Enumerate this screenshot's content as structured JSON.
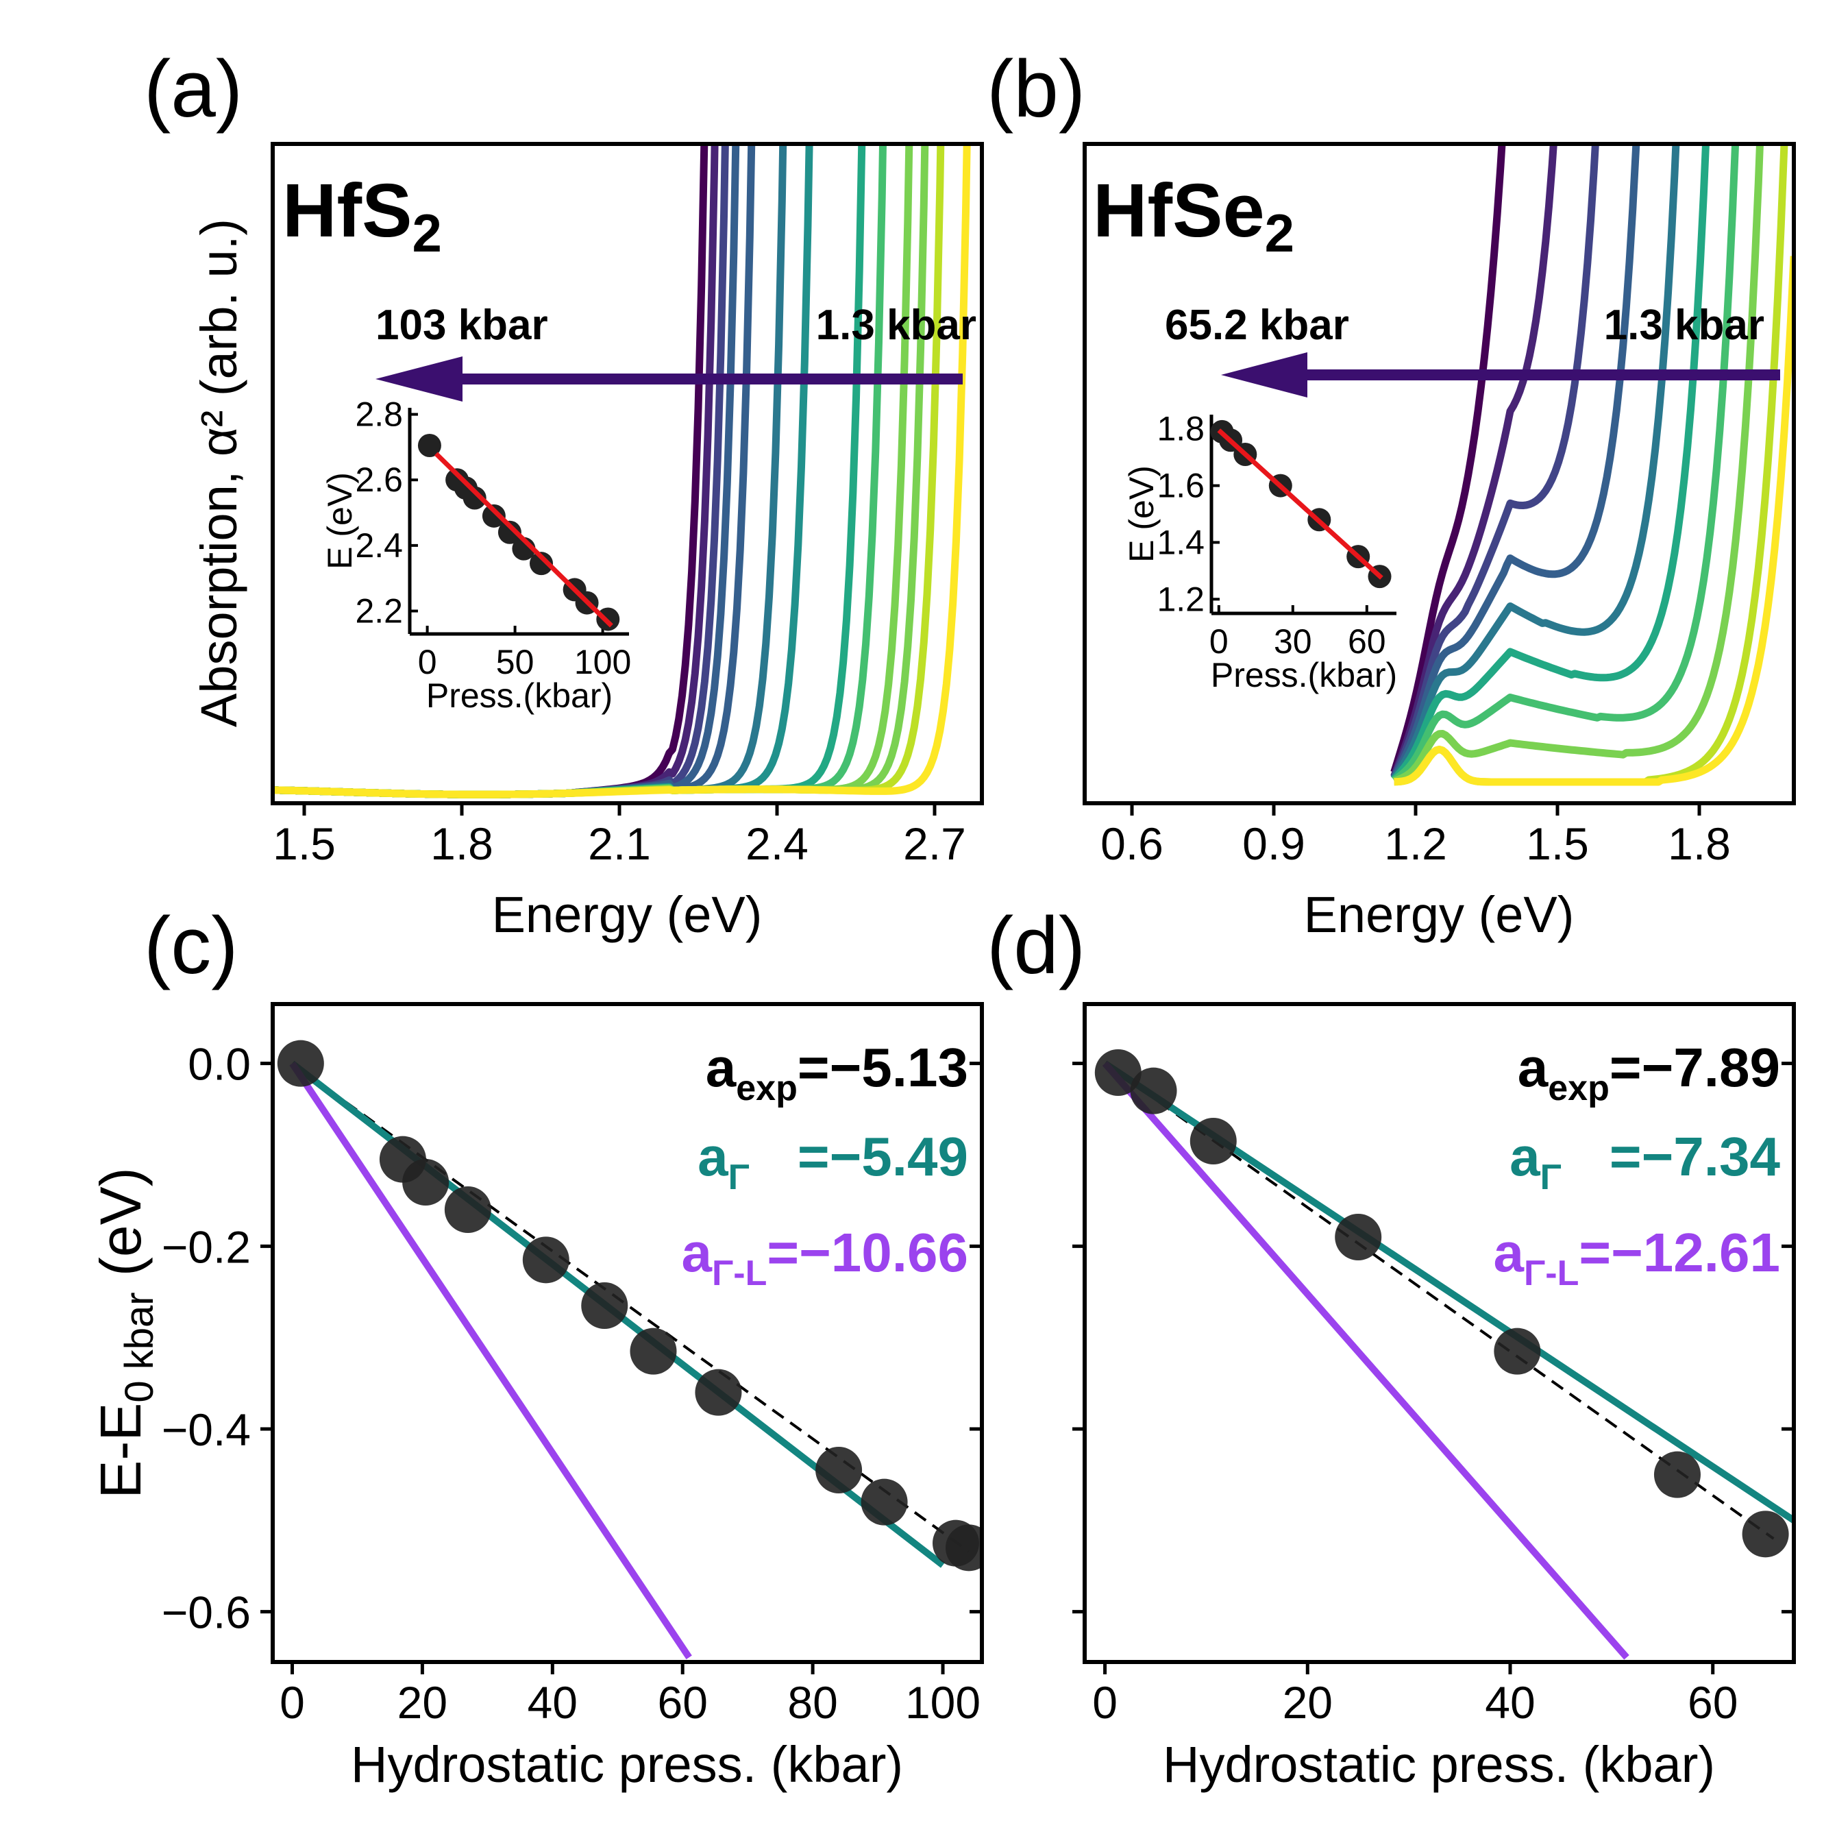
{
  "colors": {
    "arrow": "#3b0f6f",
    "fit_red": "#e8161b",
    "gamma": "#138580",
    "gamma_L": "#9b43ee",
    "points": "#222222",
    "viridis": [
      "#440154",
      "#482475",
      "#414487",
      "#355f8d",
      "#2a788e",
      "#21918c",
      "#22a884",
      "#44bf70",
      "#7ad151",
      "#bddf26",
      "#fde725"
    ]
  },
  "chart_data": [
    {
      "id": "a",
      "panel_label": "(a)",
      "type": "line",
      "material": "HfS",
      "material_sub": "2",
      "xlabel": "Energy (eV)",
      "ylabel": "Absorption, α² (arb. u.)",
      "xlim": [
        1.44,
        2.79
      ],
      "xticks": [
        1.5,
        1.8,
        2.1,
        2.4,
        2.7
      ],
      "xtick_labels": [
        "1.5",
        "1.8",
        "2.1",
        "2.4",
        "2.7"
      ],
      "yticks": [],
      "arrow": {
        "from_label": "1.3 kbar",
        "to_label": "103 kbar",
        "direction": "left"
      },
      "edges_eV": [
        2.2,
        2.22,
        2.24,
        2.26,
        2.29,
        2.35,
        2.4,
        2.5,
        2.54,
        2.59,
        2.62,
        2.65,
        2.7
      ],
      "inset": {
        "type": "scatter",
        "xlabel": "Press.(kbar)",
        "ylabel": "E (eV)",
        "xlim": [
          -10,
          115
        ],
        "ylim": [
          2.13,
          2.82
        ],
        "xticks": [
          0,
          50,
          100
        ],
        "xtick_labels": [
          "0",
          "50",
          "100"
        ],
        "yticks": [
          2.2,
          2.4,
          2.6,
          2.8
        ],
        "ytick_labels": [
          "2.2",
          "2.4",
          "2.6",
          "2.8"
        ],
        "x": [
          1.3,
          17,
          22,
          27,
          38,
          47,
          55,
          65,
          84,
          91,
          103
        ],
        "y": [
          2.705,
          2.6,
          2.575,
          2.545,
          2.49,
          2.44,
          2.39,
          2.345,
          2.265,
          2.225,
          2.175
        ],
        "fit": {
          "x": [
            5,
            105
          ],
          "y": [
            2.68,
            2.155
          ]
        }
      }
    },
    {
      "id": "b",
      "panel_label": "(b)",
      "type": "line",
      "material": "HfSe",
      "material_sub": "2",
      "xlabel": "Energy (eV)",
      "xlim": [
        0.5,
        2.0
      ],
      "xticks": [
        0.6,
        0.9,
        1.2,
        1.5,
        1.8
      ],
      "xtick_labels": [
        "0.6",
        "0.9",
        "1.2",
        "1.5",
        "1.8"
      ],
      "yticks": [],
      "arrow": {
        "from_label": "1.3 kbar",
        "to_label": "65.2 kbar",
        "direction": "left"
      },
      "edges_eV": [
        1.28,
        1.38,
        1.46,
        1.54,
        1.62,
        1.68,
        1.74,
        1.79,
        1.84,
        1.87
      ],
      "inset": {
        "type": "scatter",
        "xlabel": "Press.(kbar)",
        "ylabel": "E (eV)",
        "xlim": [
          -3,
          72
        ],
        "ylim": [
          1.15,
          1.85
        ],
        "xticks": [
          0,
          30,
          60
        ],
        "xtick_labels": [
          "0",
          "30",
          "60"
        ],
        "yticks": [
          1.2,
          1.4,
          1.6,
          1.8
        ],
        "ytick_labels": [
          "1.2",
          "1.4",
          "1.6",
          "1.8"
        ],
        "x": [
          1.3,
          4.8,
          10.7,
          25,
          40.7,
          56.5,
          65.2
        ],
        "y": [
          1.79,
          1.76,
          1.71,
          1.6,
          1.48,
          1.35,
          1.28
        ],
        "fit": {
          "x": [
            0,
            66
          ],
          "y": [
            1.795,
            1.275
          ]
        }
      }
    },
    {
      "id": "c",
      "panel_label": "(c)",
      "type": "scatter",
      "xlabel": "Hydrostatic press. (kbar)",
      "ylabel": "E-E",
      "ylabel_sub": "0 kbar",
      "ylabel_tail": " (eV)",
      "xlim": [
        -3,
        106
      ],
      "ylim": [
        -0.655,
        0.065
      ],
      "xticks": [
        0,
        20,
        40,
        60,
        80,
        100
      ],
      "xtick_labels": [
        "0",
        "20",
        "40",
        "60",
        "80",
        "100"
      ],
      "yticks": [
        0.0,
        -0.2,
        -0.4,
        -0.6
      ],
      "ytick_labels": [
        "0.0",
        "−0.2",
        "−0.4",
        "−0.6"
      ],
      "x": [
        1.3,
        17,
        20.5,
        27,
        39,
        48,
        55.5,
        65.5,
        84,
        91,
        102,
        104
      ],
      "y": [
        0.0,
        -0.105,
        -0.13,
        -0.16,
        -0.215,
        -0.265,
        -0.315,
        -0.36,
        -0.445,
        -0.48,
        -0.525,
        -0.53
      ],
      "fits": [
        {
          "name": "exp",
          "slope": -5.13,
          "x": [
            0,
            104
          ],
          "y": [
            0.0,
            -0.534
          ],
          "style": "dashed"
        },
        {
          "name": "Γ",
          "slope": -5.49,
          "x": [
            0,
            100
          ],
          "y": [
            0.0,
            -0.549
          ]
        },
        {
          "name": "Γ-L",
          "slope": -10.66,
          "x": [
            0,
            61
          ],
          "y": [
            0.0,
            -0.65
          ]
        }
      ],
      "annotations": [
        {
          "label": "a",
          "sub": "exp",
          "value": "=−5.13"
        },
        {
          "label": "a",
          "sub": "Γ",
          "value": "=−5.49"
        },
        {
          "label": "a",
          "sub": "Γ-L",
          "value": "=−10.66"
        }
      ]
    },
    {
      "id": "d",
      "panel_label": "(d)",
      "type": "scatter",
      "xlabel": "Hydrostatic press. (kbar)",
      "xlim": [
        -2,
        68
      ],
      "ylim": [
        -0.655,
        0.065
      ],
      "xticks": [
        0,
        20,
        40,
        60
      ],
      "xtick_labels": [
        "0",
        "20",
        "40",
        "60"
      ],
      "yticks": [
        0.0,
        -0.2,
        -0.4,
        -0.6
      ],
      "x": [
        1.3,
        4.8,
        10.7,
        25,
        40.7,
        56.5,
        65.2
      ],
      "y": [
        -0.01,
        -0.03,
        -0.085,
        -0.19,
        -0.315,
        -0.45,
        -0.515
      ],
      "fits": [
        {
          "name": "exp",
          "slope": -7.89,
          "x": [
            0,
            66
          ],
          "y": [
            0.0,
            -0.52
          ],
          "style": "dashed"
        },
        {
          "name": "Γ",
          "slope": -7.34,
          "x": [
            0,
            68
          ],
          "y": [
            0.0,
            -0.5
          ]
        },
        {
          "name": "Γ-L",
          "slope": -12.61,
          "x": [
            0,
            51.5
          ],
          "y": [
            0.0,
            -0.65
          ]
        }
      ],
      "annotations": [
        {
          "label": "a",
          "sub": "exp",
          "value": "=−7.89"
        },
        {
          "label": "a",
          "sub": "Γ",
          "value": "=−7.34"
        },
        {
          "label": "a",
          "sub": "Γ-L",
          "value": "=−12.61"
        }
      ]
    }
  ]
}
